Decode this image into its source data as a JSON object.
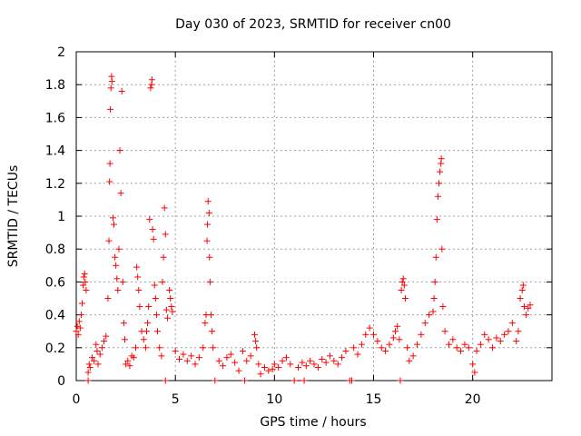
{
  "chart_data": {
    "type": "scatter",
    "title": "Day 030 of 2023, SRMTID for receiver cn00",
    "xlabel": "GPS time / hours",
    "ylabel": "SRMTID / TECUs",
    "xlim": [
      0,
      24
    ],
    "ylim": [
      0,
      2
    ],
    "xticks": [
      0,
      5,
      10,
      15,
      20
    ],
    "yticks": [
      0,
      0.2,
      0.4,
      0.6,
      0.8,
      1,
      1.2,
      1.4,
      1.6,
      1.8,
      2
    ],
    "ytick_labels": [
      "0",
      "0.2",
      "0.4",
      "0.6",
      "0.8",
      "1",
      "1.2",
      "1.4",
      "1.6",
      "1.8",
      "2"
    ],
    "grid": true,
    "marker": "+",
    "color": "#ff0000",
    "series": [
      {
        "name": "SRMTID",
        "points": [
          [
            0.0,
            0.3
          ],
          [
            0.05,
            0.33
          ],
          [
            0.1,
            0.28
          ],
          [
            0.15,
            0.36
          ],
          [
            0.2,
            0.32
          ],
          [
            0.25,
            0.4
          ],
          [
            0.3,
            0.47
          ],
          [
            0.35,
            0.58
          ],
          [
            0.38,
            0.63
          ],
          [
            0.42,
            0.65
          ],
          [
            0.45,
            0.6
          ],
          [
            0.5,
            0.55
          ],
          [
            0.6,
            0.0
          ],
          [
            0.6,
            0.05
          ],
          [
            0.65,
            0.1
          ],
          [
            0.7,
            0.08
          ],
          [
            0.8,
            0.14
          ],
          [
            0.9,
            0.12
          ],
          [
            1.0,
            0.22
          ],
          [
            1.05,
            0.18
          ],
          [
            1.1,
            0.1
          ],
          [
            1.2,
            0.16
          ],
          [
            1.3,
            0.2
          ],
          [
            1.4,
            0.24
          ],
          [
            1.5,
            0.27
          ],
          [
            1.6,
            0.5
          ],
          [
            1.65,
            0.85
          ],
          [
            1.68,
            1.21
          ],
          [
            1.7,
            1.32
          ],
          [
            1.72,
            1.65
          ],
          [
            1.75,
            1.78
          ],
          [
            1.78,
            1.85
          ],
          [
            1.8,
            1.82
          ],
          [
            1.85,
            0.99
          ],
          [
            1.9,
            0.95
          ],
          [
            1.95,
            0.75
          ],
          [
            2.0,
            0.7
          ],
          [
            2.05,
            0.62
          ],
          [
            2.1,
            0.55
          ],
          [
            2.15,
            0.8
          ],
          [
            2.2,
            1.4
          ],
          [
            2.25,
            1.14
          ],
          [
            2.3,
            1.76
          ],
          [
            2.35,
            0.6
          ],
          [
            2.4,
            0.35
          ],
          [
            2.45,
            0.25
          ],
          [
            2.5,
            0.1
          ],
          [
            2.6,
            0.12
          ],
          [
            2.7,
            0.09
          ],
          [
            2.8,
            0.15
          ],
          [
            2.9,
            0.14
          ],
          [
            3.0,
            0.2
          ],
          [
            3.05,
            0.69
          ],
          [
            3.1,
            0.63
          ],
          [
            3.15,
            0.55
          ],
          [
            3.2,
            0.45
          ],
          [
            3.3,
            0.3
          ],
          [
            3.4,
            0.25
          ],
          [
            3.5,
            0.2
          ],
          [
            3.55,
            0.3
          ],
          [
            3.6,
            0.35
          ],
          [
            3.65,
            0.45
          ],
          [
            3.7,
            0.98
          ],
          [
            3.75,
            1.78
          ],
          [
            3.8,
            1.8
          ],
          [
            3.82,
            1.83
          ],
          [
            3.85,
            0.92
          ],
          [
            3.9,
            0.86
          ],
          [
            3.95,
            0.58
          ],
          [
            4.0,
            0.5
          ],
          [
            4.05,
            0.4
          ],
          [
            4.1,
            0.3
          ],
          [
            4.2,
            0.2
          ],
          [
            4.3,
            0.15
          ],
          [
            4.35,
            0.6
          ],
          [
            4.4,
            0.75
          ],
          [
            4.45,
            1.05
          ],
          [
            4.5,
            0.89
          ],
          [
            4.55,
            0.43
          ],
          [
            4.6,
            0.38
          ],
          [
            4.7,
            0.55
          ],
          [
            4.75,
            0.5
          ],
          [
            4.8,
            0.45
          ],
          [
            4.85,
            0.42
          ],
          [
            4.5,
            0.0
          ],
          [
            5.0,
            0.18
          ],
          [
            5.2,
            0.13
          ],
          [
            5.4,
            0.16
          ],
          [
            5.6,
            0.12
          ],
          [
            5.8,
            0.15
          ],
          [
            6.0,
            0.1
          ],
          [
            6.2,
            0.14
          ],
          [
            6.4,
            0.2
          ],
          [
            6.5,
            0.35
          ],
          [
            6.55,
            0.4
          ],
          [
            6.6,
            0.85
          ],
          [
            6.62,
            0.95
          ],
          [
            6.65,
            1.09
          ],
          [
            6.7,
            1.02
          ],
          [
            6.72,
            0.75
          ],
          [
            6.75,
            0.6
          ],
          [
            6.8,
            0.4
          ],
          [
            6.85,
            0.3
          ],
          [
            6.9,
            0.2
          ],
          [
            7.0,
            0.0
          ],
          [
            7.2,
            0.12
          ],
          [
            7.4,
            0.09
          ],
          [
            7.6,
            0.14
          ],
          [
            7.8,
            0.16
          ],
          [
            8.0,
            0.11
          ],
          [
            8.2,
            0.06
          ],
          [
            8.4,
            0.18
          ],
          [
            8.5,
            0.0
          ],
          [
            8.6,
            0.12
          ],
          [
            8.8,
            0.15
          ],
          [
            9.0,
            0.28
          ],
          [
            9.05,
            0.24
          ],
          [
            9.1,
            0.2
          ],
          [
            9.2,
            0.1
          ],
          [
            9.3,
            0.04
          ],
          [
            9.5,
            0.08
          ],
          [
            9.7,
            0.06
          ],
          [
            9.9,
            0.07
          ],
          [
            10.0,
            0.1
          ],
          [
            10.2,
            0.08
          ],
          [
            10.4,
            0.12
          ],
          [
            10.6,
            0.14
          ],
          [
            10.8,
            0.1
          ],
          [
            11.0,
            0.0
          ],
          [
            11.2,
            0.08
          ],
          [
            11.4,
            0.11
          ],
          [
            11.5,
            0.0
          ],
          [
            11.6,
            0.09
          ],
          [
            11.8,
            0.12
          ],
          [
            12.0,
            0.1
          ],
          [
            12.2,
            0.08
          ],
          [
            12.4,
            0.13
          ],
          [
            12.6,
            0.11
          ],
          [
            12.8,
            0.15
          ],
          [
            13.0,
            0.12
          ],
          [
            13.2,
            0.1
          ],
          [
            13.4,
            0.14
          ],
          [
            13.6,
            0.18
          ],
          [
            13.8,
            0.0
          ],
          [
            13.9,
            0.0
          ],
          [
            14.0,
            0.2
          ],
          [
            14.2,
            0.16
          ],
          [
            14.4,
            0.22
          ],
          [
            14.6,
            0.28
          ],
          [
            14.8,
            0.32
          ],
          [
            15.0,
            0.28
          ],
          [
            15.2,
            0.24
          ],
          [
            15.4,
            0.2
          ],
          [
            15.6,
            0.18
          ],
          [
            15.8,
            0.22
          ],
          [
            16.0,
            0.26
          ],
          [
            16.1,
            0.3
          ],
          [
            16.2,
            0.33
          ],
          [
            16.3,
            0.25
          ],
          [
            16.35,
            0.0
          ],
          [
            16.4,
            0.55
          ],
          [
            16.45,
            0.6
          ],
          [
            16.5,
            0.62
          ],
          [
            16.55,
            0.58
          ],
          [
            16.6,
            0.5
          ],
          [
            16.7,
            0.2
          ],
          [
            16.8,
            0.12
          ],
          [
            17.0,
            0.15
          ],
          [
            17.2,
            0.22
          ],
          [
            17.4,
            0.28
          ],
          [
            17.6,
            0.35
          ],
          [
            17.8,
            0.4
          ],
          [
            18.0,
            0.42
          ],
          [
            18.05,
            0.5
          ],
          [
            18.1,
            0.6
          ],
          [
            18.15,
            0.75
          ],
          [
            18.2,
            0.98
          ],
          [
            18.25,
            1.12
          ],
          [
            18.3,
            1.2
          ],
          [
            18.35,
            1.27
          ],
          [
            18.4,
            1.32
          ],
          [
            18.42,
            1.35
          ],
          [
            18.45,
            0.8
          ],
          [
            18.5,
            0.45
          ],
          [
            18.6,
            0.3
          ],
          [
            18.8,
            0.22
          ],
          [
            19.0,
            0.25
          ],
          [
            19.2,
            0.2
          ],
          [
            19.4,
            0.18
          ],
          [
            19.6,
            0.22
          ],
          [
            19.8,
            0.2
          ],
          [
            20.0,
            0.1
          ],
          [
            20.1,
            0.05
          ],
          [
            20.2,
            0.18
          ],
          [
            20.4,
            0.22
          ],
          [
            20.6,
            0.28
          ],
          [
            20.8,
            0.25
          ],
          [
            21.0,
            0.2
          ],
          [
            21.2,
            0.26
          ],
          [
            21.4,
            0.24
          ],
          [
            21.6,
            0.28
          ],
          [
            21.8,
            0.3
          ],
          [
            22.0,
            0.35
          ],
          [
            22.2,
            0.24
          ],
          [
            22.3,
            0.3
          ],
          [
            22.4,
            0.5
          ],
          [
            22.5,
            0.55
          ],
          [
            22.55,
            0.58
          ],
          [
            22.6,
            0.45
          ],
          [
            22.7,
            0.4
          ],
          [
            22.8,
            0.44
          ],
          [
            22.9,
            0.46
          ]
        ]
      }
    ]
  }
}
